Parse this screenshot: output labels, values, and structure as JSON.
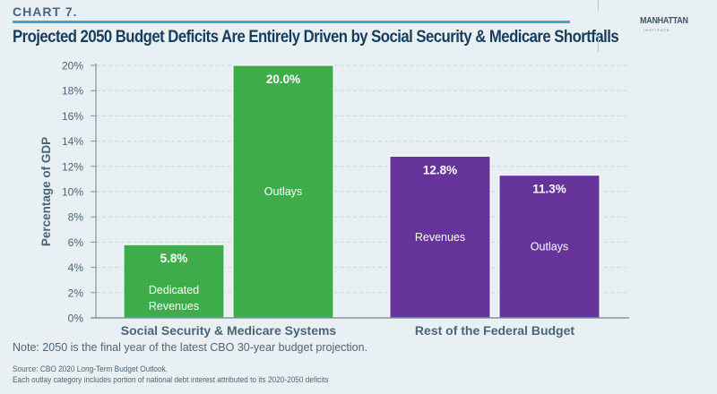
{
  "header": {
    "chart_label": "CHART 7.",
    "title": "Projected 2050 Budget Deficits Are Entirely Driven by Social Security & Medicare Shortfalls",
    "logo_main": "MANHATTAN",
    "logo_sub": "INSTITUTE"
  },
  "footer": {
    "note": "Note: 2050 is the final year of the latest CBO 30-year budget projection.",
    "source": "Source: CBO 2020 Long-Term Budget Outlook.",
    "disclaimer": "Each outlay category includes portion of national debt interest attributed to its 2020-2050 deficits"
  },
  "colors": {
    "green": "#3fac4a",
    "purple": "#66349a",
    "axis": "#7f95a3",
    "grid": "#cdd5db",
    "tick_text": "#4a6478",
    "accent_rule": "#3fa3dc"
  },
  "chart_data": {
    "type": "bar",
    "title": "Projected 2050 Budget Deficits Are Entirely Driven by Social Security & Medicare Shortfalls",
    "xlabel": "",
    "ylabel": "Percentage of GDP",
    "ylim": [
      0,
      20
    ],
    "yticks": [
      0,
      2,
      4,
      6,
      8,
      10,
      12,
      14,
      16,
      18,
      20
    ],
    "ytick_labels": [
      "0%",
      "2%",
      "4%",
      "6%",
      "8%",
      "10%",
      "12%",
      "14%",
      "16%",
      "18%",
      "20%"
    ],
    "grid": "horizontal dashed",
    "legend": "none",
    "groups": [
      {
        "name": "Social Security & Medicare Systems",
        "color": "#3fac4a",
        "bars": [
          {
            "label": "Dedicated Revenues",
            "value": 5.8,
            "value_label": "5.8%"
          },
          {
            "label": "Outlays",
            "value": 20.0,
            "value_label": "20.0%"
          }
        ]
      },
      {
        "name": "Rest of the Federal Budget",
        "color": "#66349a",
        "bars": [
          {
            "label": "Revenues",
            "value": 12.8,
            "value_label": "12.8%"
          },
          {
            "label": "Outlays",
            "value": 11.3,
            "value_label": "11.3%"
          }
        ]
      }
    ]
  }
}
